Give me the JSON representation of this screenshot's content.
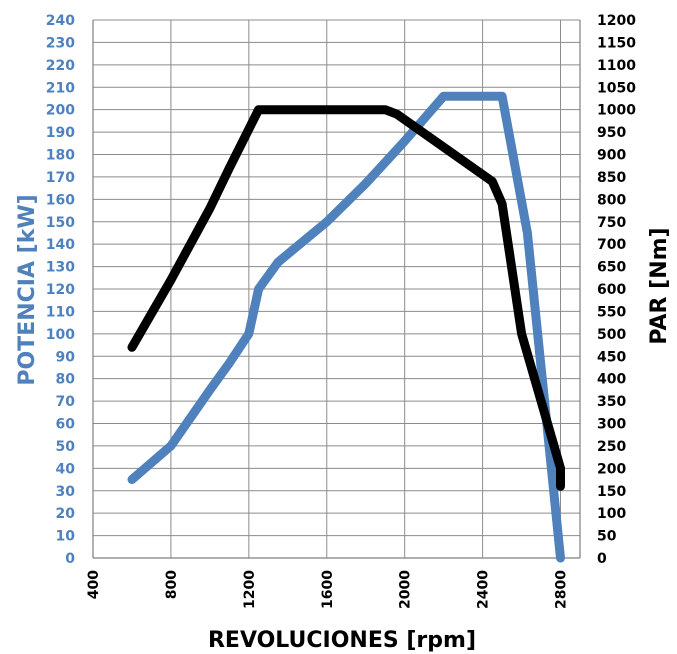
{
  "chart_data": {
    "type": "line",
    "xlabel": "REVOLUCIONES [rpm]",
    "ylabel_left": "POTENCIA [kW]",
    "ylabel_right": "PAR [Nm]",
    "xlim": [
      400,
      2900
    ],
    "xticks": [
      400,
      800,
      1200,
      1600,
      2000,
      2400,
      2800
    ],
    "ylim_left": [
      0,
      240
    ],
    "yticks_left": [
      0,
      10,
      20,
      30,
      40,
      50,
      60,
      70,
      80,
      90,
      100,
      110,
      120,
      130,
      140,
      150,
      160,
      170,
      180,
      190,
      200,
      210,
      220,
      230,
      240
    ],
    "ylim_right": [
      0,
      1200
    ],
    "yticks_right": [
      0,
      50,
      100,
      150,
      200,
      250,
      300,
      350,
      400,
      450,
      500,
      550,
      600,
      650,
      700,
      750,
      800,
      850,
      900,
      950,
      1000,
      1050,
      1100,
      1150,
      1200
    ],
    "grid": true,
    "series": [
      {
        "axis": "left",
        "color": "#4f81bd",
        "x": [
          600,
          800,
          1000,
          1100,
          1200,
          1250,
          1350,
          1600,
          1800,
          2000,
          2200,
          2500,
          2630,
          2800
        ],
        "y": [
          35,
          50,
          75,
          87,
          100,
          120,
          132,
          150,
          167,
          186,
          206,
          206,
          145,
          0
        ]
      },
      {
        "axis": "right",
        "color": "#000000",
        "x": [
          600,
          800,
          1000,
          1100,
          1250,
          1900,
          1960,
          2450,
          2500,
          2600,
          2800,
          2800
        ],
        "y": [
          470,
          620,
          780,
          870,
          1000,
          1000,
          990,
          840,
          790,
          500,
          200,
          160
        ]
      }
    ]
  }
}
